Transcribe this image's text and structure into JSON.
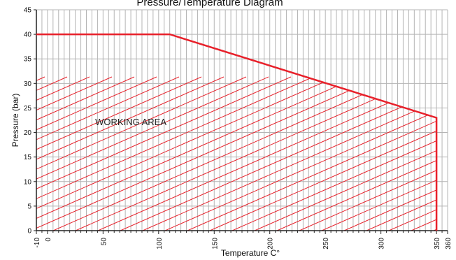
{
  "chart_data": {
    "type": "area",
    "title": "Pressure/Temperature Diagram",
    "xlabel": "Temperature C°",
    "ylabel": "Pressure (bar)",
    "xlim": [
      -10,
      360
    ],
    "ylim": [
      0,
      45
    ],
    "x_ticks": [
      -10,
      0,
      50,
      100,
      150,
      200,
      250,
      300,
      350,
      360
    ],
    "y_ticks": [
      0,
      5,
      10,
      15,
      20,
      25,
      30,
      35,
      40,
      45
    ],
    "grid": true,
    "series": [
      {
        "x": [
          -10,
          110,
          350,
          350
        ],
        "y": [
          40,
          40,
          23,
          0
        ]
      }
    ],
    "annotations": [
      {
        "text": "WORKING AREA",
        "x": 75,
        "y": 21.5
      }
    ],
    "colors": {
      "boundary": "#e8202a",
      "hatch": "#e8202a",
      "grid": "#b4b4b4",
      "axis": "#222222"
    }
  }
}
